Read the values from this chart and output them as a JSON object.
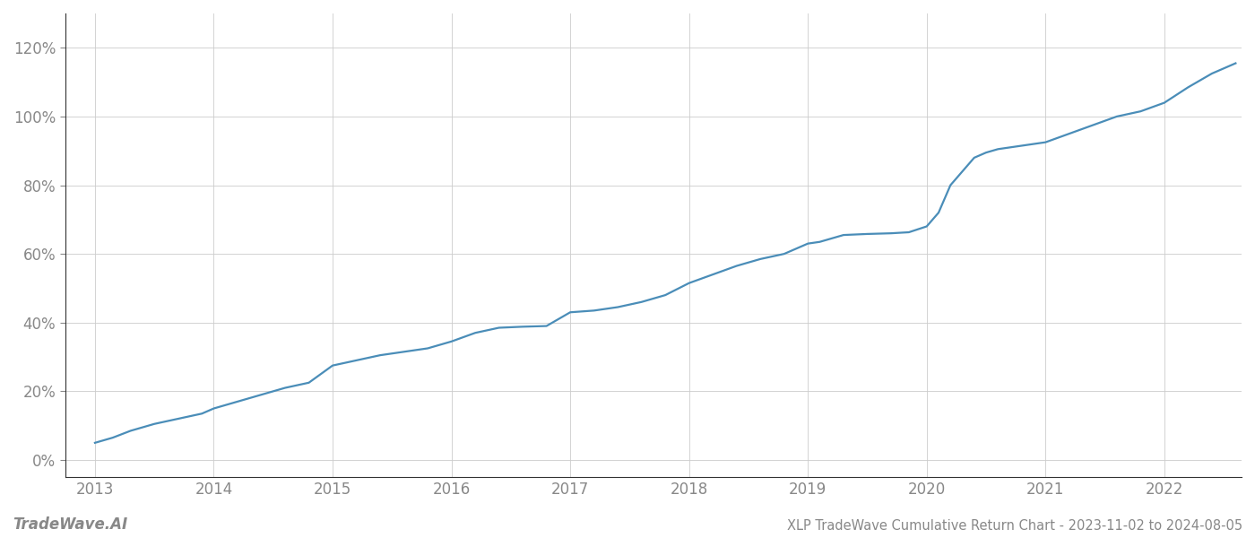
{
  "title": "XLP TradeWave Cumulative Return Chart - 2023-11-02 to 2024-08-05",
  "watermark": "TradeWave.AI",
  "line_color": "#4a8db8",
  "background_color": "#ffffff",
  "grid_color": "#cccccc",
  "axis_color": "#333333",
  "text_color": "#888888",
  "x_years": [
    2013,
    2014,
    2015,
    2016,
    2017,
    2018,
    2019,
    2020,
    2021,
    2022
  ],
  "data_points": [
    [
      2013.0,
      5.0
    ],
    [
      2013.15,
      6.5
    ],
    [
      2013.3,
      8.5
    ],
    [
      2013.5,
      10.5
    ],
    [
      2013.7,
      12.0
    ],
    [
      2013.9,
      13.5
    ],
    [
      2014.0,
      15.0
    ],
    [
      2014.2,
      17.0
    ],
    [
      2014.4,
      19.0
    ],
    [
      2014.6,
      21.0
    ],
    [
      2014.8,
      22.5
    ],
    [
      2015.0,
      27.5
    ],
    [
      2015.2,
      29.0
    ],
    [
      2015.4,
      30.5
    ],
    [
      2015.6,
      31.5
    ],
    [
      2015.8,
      32.5
    ],
    [
      2016.0,
      34.5
    ],
    [
      2016.2,
      37.0
    ],
    [
      2016.4,
      38.5
    ],
    [
      2016.6,
      38.8
    ],
    [
      2016.8,
      39.0
    ],
    [
      2017.0,
      43.0
    ],
    [
      2017.2,
      43.5
    ],
    [
      2017.4,
      44.5
    ],
    [
      2017.6,
      46.0
    ],
    [
      2017.8,
      48.0
    ],
    [
      2018.0,
      51.5
    ],
    [
      2018.2,
      54.0
    ],
    [
      2018.4,
      56.5
    ],
    [
      2018.6,
      58.5
    ],
    [
      2018.8,
      60.0
    ],
    [
      2019.0,
      63.0
    ],
    [
      2019.1,
      63.5
    ],
    [
      2019.2,
      64.5
    ],
    [
      2019.3,
      65.5
    ],
    [
      2019.5,
      65.8
    ],
    [
      2019.7,
      66.0
    ],
    [
      2019.85,
      66.3
    ],
    [
      2020.0,
      68.0
    ],
    [
      2020.1,
      72.0
    ],
    [
      2020.2,
      80.0
    ],
    [
      2020.4,
      88.0
    ],
    [
      2020.5,
      89.5
    ],
    [
      2020.6,
      90.5
    ],
    [
      2020.8,
      91.5
    ],
    [
      2021.0,
      92.5
    ],
    [
      2021.2,
      95.0
    ],
    [
      2021.4,
      97.5
    ],
    [
      2021.6,
      100.0
    ],
    [
      2021.8,
      101.5
    ],
    [
      2022.0,
      104.0
    ],
    [
      2022.2,
      108.5
    ],
    [
      2022.4,
      112.5
    ],
    [
      2022.6,
      115.5
    ]
  ],
  "ylim": [
    -5,
    130
  ],
  "yticks": [
    0,
    20,
    40,
    60,
    80,
    100,
    120
  ],
  "xlim": [
    2012.75,
    2022.65
  ],
  "title_fontsize": 10.5,
  "tick_fontsize": 12,
  "watermark_fontsize": 12,
  "line_width": 1.6
}
